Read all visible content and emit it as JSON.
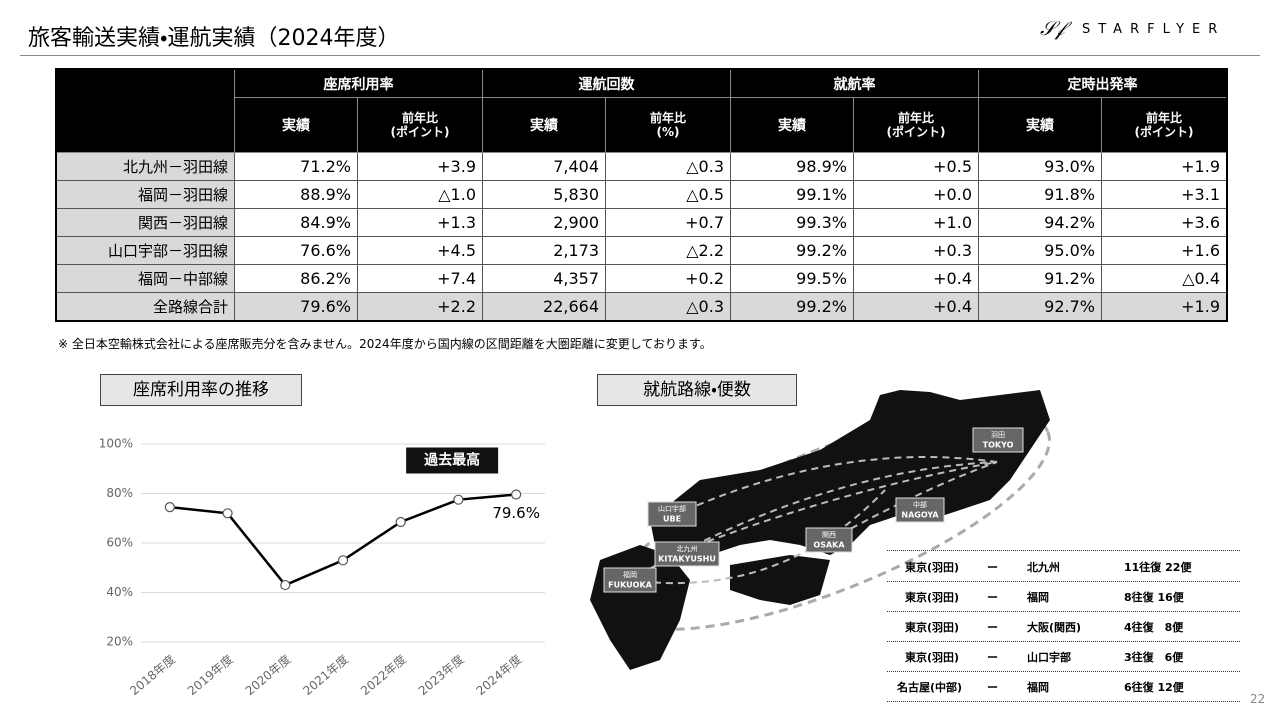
{
  "header": {
    "title": "旅客輸送実績・運航実績（2024年度）",
    "logo": "STARFLYER"
  },
  "table": {
    "groups": [
      "座席利用率",
      "運航回数",
      "就航率",
      "定時出発率"
    ],
    "subheaders": [
      [
        "実績"
      ],
      [
        "前年比",
        "(ポイント)"
      ],
      [
        "実績"
      ],
      [
        "前年比",
        "(%)"
      ],
      [
        "実績"
      ],
      [
        "前年比",
        "(ポイント)"
      ],
      [
        "実績"
      ],
      [
        "前年比",
        "(ポイント)"
      ]
    ],
    "rows": [
      [
        "北九州－羽田線",
        "71.2%",
        "+3.9",
        "7,404",
        "△0.3",
        "98.9%",
        "+0.5",
        "93.0%",
        "+1.9"
      ],
      [
        "福岡－羽田線",
        "88.9%",
        "△1.0",
        "5,830",
        "△0.5",
        "99.1%",
        "+0.0",
        "91.8%",
        "+3.1"
      ],
      [
        "関西－羽田線",
        "84.9%",
        "+1.3",
        "2,900",
        "+0.7",
        "99.3%",
        "+1.0",
        "94.2%",
        "+3.6"
      ],
      [
        "山口宇部－羽田線",
        "76.6%",
        "+4.5",
        "2,173",
        "△2.2",
        "99.2%",
        "+0.3",
        "95.0%",
        "+1.6"
      ],
      [
        "福岡－中部線",
        "86.2%",
        "+7.4",
        "4,357",
        "+0.2",
        "99.5%",
        "+0.4",
        "91.2%",
        "△0.4"
      ],
      [
        "全路線合計",
        "79.6%",
        "+2.2",
        "22,664",
        "△0.3",
        "99.2%",
        "+0.4",
        "92.7%",
        "+1.9"
      ]
    ],
    "footnote": "※ 全日本空輸株式会社による座席販売分を含みません。2024年度から国内線の区間距離を大圏距離に変更しております。"
  },
  "chart_data": {
    "type": "line",
    "title": "座席利用率の推移",
    "categories": [
      "2018年度",
      "2019年度",
      "2020年度",
      "2021年度",
      "2022年度",
      "2023年度",
      "2024年度"
    ],
    "values": [
      74.5,
      72,
      43,
      53,
      68.5,
      77.5,
      79.6
    ],
    "value_labels": [
      null,
      null,
      null,
      null,
      null,
      null,
      "79.6%"
    ],
    "annotation": "過去最高",
    "color": "#000000",
    "ylim": [
      20,
      100
    ],
    "yticks": [
      {
        "value": 20,
        "label": "20%"
      },
      {
        "value": 40,
        "label": "40%"
      },
      {
        "value": 60,
        "label": "60%"
      },
      {
        "value": 80,
        "label": "80%"
      },
      {
        "value": 100,
        "label": "100%"
      }
    ],
    "grid": true
  },
  "map": {
    "title": "就航路線・便数",
    "labels": [
      [
        "羽田",
        "TOKYO"
      ],
      [
        "中部",
        "NAGOYA"
      ],
      [
        "関西",
        "OSAKA"
      ],
      [
        "山口宇部",
        "UBE"
      ],
      [
        "北九州",
        "KITAKYUSHU"
      ],
      [
        "福岡",
        "FUKUOKA"
      ]
    ],
    "routes": [
      [
        "東京(羽田)",
        "ー",
        "北九州",
        "11往復 22便"
      ],
      [
        "東京(羽田)",
        "ー",
        "福岡",
        "8往復 16便"
      ],
      [
        "東京(羽田)",
        "ー",
        "大阪(関西)",
        "4往復　8便"
      ],
      [
        "東京(羽田)",
        "ー",
        "山口宇部",
        "3往復　6便"
      ],
      [
        "名古屋(中部)",
        "ー",
        "福岡",
        "6往復 12便"
      ]
    ]
  },
  "page_number": "22"
}
